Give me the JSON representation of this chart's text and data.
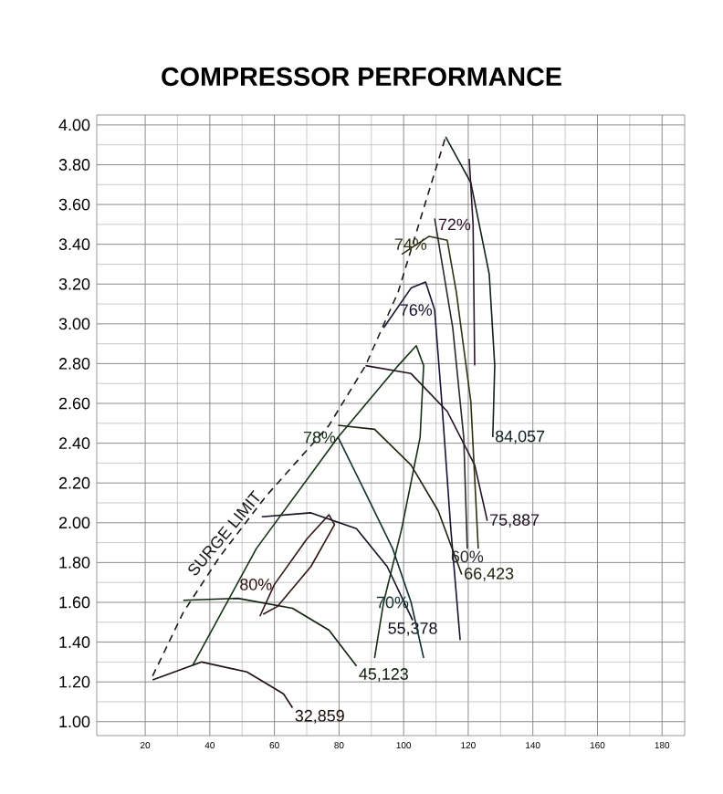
{
  "chart_data": {
    "type": "line",
    "title": "COMPRESSOR PERFORMANCE",
    "xlim": [
      5,
      187
    ],
    "xticks": [
      20,
      40,
      60,
      80,
      100,
      120,
      140,
      160,
      180
    ],
    "ylim": [
      0.93,
      4.05
    ],
    "yticks": [
      {
        "value": 1.0,
        "label": "1.00"
      },
      {
        "value": 1.2,
        "label": "1.20"
      },
      {
        "value": 1.4,
        "label": "1.40"
      },
      {
        "value": 1.6,
        "label": "1.60"
      },
      {
        "value": 1.8,
        "label": "1.80"
      },
      {
        "value": 2.0,
        "label": "2.00"
      },
      {
        "value": 2.2,
        "label": "2.20"
      },
      {
        "value": 2.4,
        "label": "2.40"
      },
      {
        "value": 2.6,
        "label": "2.60"
      },
      {
        "value": 2.8,
        "label": "2.80"
      },
      {
        "value": 3.0,
        "label": "3.00"
      },
      {
        "value": 3.2,
        "label": "3.20"
      },
      {
        "value": 3.4,
        "label": "3.40"
      },
      {
        "value": 3.6,
        "label": "3.60"
      },
      {
        "value": 3.8,
        "label": "3.80"
      },
      {
        "value": 4.0,
        "label": "4.00"
      }
    ],
    "grid": true,
    "marker": "none",
    "series": [
      {
        "name": "SURGE LIMIT",
        "color": "#1a1a1a",
        "line_style": "dashed",
        "x": [
          22.3,
          31.8,
          43.1,
          57.2,
          76.9,
          88.2,
          98.3,
          106.2,
          113.0
        ],
        "values": [
          1.23,
          1.55,
          1.83,
          2.13,
          2.49,
          2.79,
          3.16,
          3.58,
          3.94
        ]
      },
      {
        "name": "32,859",
        "color": "#201010",
        "x": [
          22.3,
          37.5,
          51.5,
          62.8,
          65.6
        ],
        "values": [
          1.21,
          1.3,
          1.25,
          1.14,
          1.07
        ]
      },
      {
        "name": "45,123",
        "color": "#102010",
        "x": [
          31.8,
          48.7,
          65.6,
          76.9,
          85.4
        ],
        "values": [
          1.61,
          1.62,
          1.57,
          1.46,
          1.28
        ]
      },
      {
        "name": "55,378",
        "color": "#101020",
        "x": [
          56.1,
          71.3,
          85.4,
          94.9,
          102.8
        ],
        "values": [
          2.03,
          2.05,
          1.97,
          1.78,
          1.51
        ]
      },
      {
        "name": "66,423",
        "color": "#202010",
        "x": [
          79.7,
          91.0,
          102.3,
          110.7,
          118.0
        ],
        "values": [
          2.49,
          2.47,
          2.29,
          2.06,
          1.74
        ]
      },
      {
        "name": "75,887",
        "color": "#201020",
        "x": [
          88.2,
          102.3,
          113.5,
          122.0,
          125.9
        ],
        "values": [
          2.79,
          2.75,
          2.56,
          2.29,
          2.01
        ]
      },
      {
        "name": "84,057",
        "color": "#102020",
        "x": [
          113.0,
          120.8,
          126.5,
          128.2,
          127.6
        ],
        "values": [
          3.94,
          3.71,
          3.25,
          2.79,
          2.43
        ]
      },
      {
        "name": "80%",
        "color": "#301515",
        "x": [
          55.5,
          60.0,
          70.1,
          76.9,
          78.6,
          71.3,
          61.0,
          56.5
        ],
        "values": [
          1.53,
          1.69,
          1.92,
          2.04,
          1.99,
          1.78,
          1.58,
          1.54
        ]
      },
      {
        "name": "78%",
        "color": "#153015",
        "x": [
          34.6,
          54.4,
          79.7,
          98.3,
          103.9,
          106.2,
          105.1,
          99.4,
          93.8,
          91.0
        ],
        "values": [
          1.28,
          1.87,
          2.43,
          2.79,
          2.89,
          2.79,
          2.43,
          1.97,
          1.6,
          1.32
        ]
      },
      {
        "name": "76%",
        "color": "#151530",
        "x": [
          93.8,
          102.3,
          106.8,
          109.6,
          111.8,
          114.6,
          117.5
        ],
        "values": [
          2.98,
          3.18,
          3.21,
          3.07,
          2.61,
          1.97,
          1.41
        ]
      },
      {
        "name": "74%",
        "color": "#303015",
        "x": [
          99.4,
          107.9,
          113.5,
          116.3,
          120.8,
          123.1
        ],
        "values": [
          3.35,
          3.44,
          3.42,
          3.16,
          2.61,
          1.87
        ]
      },
      {
        "name": "72%",
        "color": "#301530",
        "x": [
          120.3,
          121.5,
          122.0
        ],
        "values": [
          3.83,
          3.5,
          2.79
        ]
      },
      {
        "name": "70%",
        "color": "#153030",
        "x": [
          79.7,
          88.2,
          96.6,
          102.3,
          106.2
        ],
        "values": [
          2.43,
          2.15,
          1.87,
          1.6,
          1.32
        ]
      },
      {
        "name": "60%",
        "color": "#2a2a2a",
        "x": [
          109.6,
          115.2,
          118.6,
          119.7
        ],
        "values": [
          3.53,
          2.98,
          2.43,
          1.87
        ]
      }
    ]
  }
}
